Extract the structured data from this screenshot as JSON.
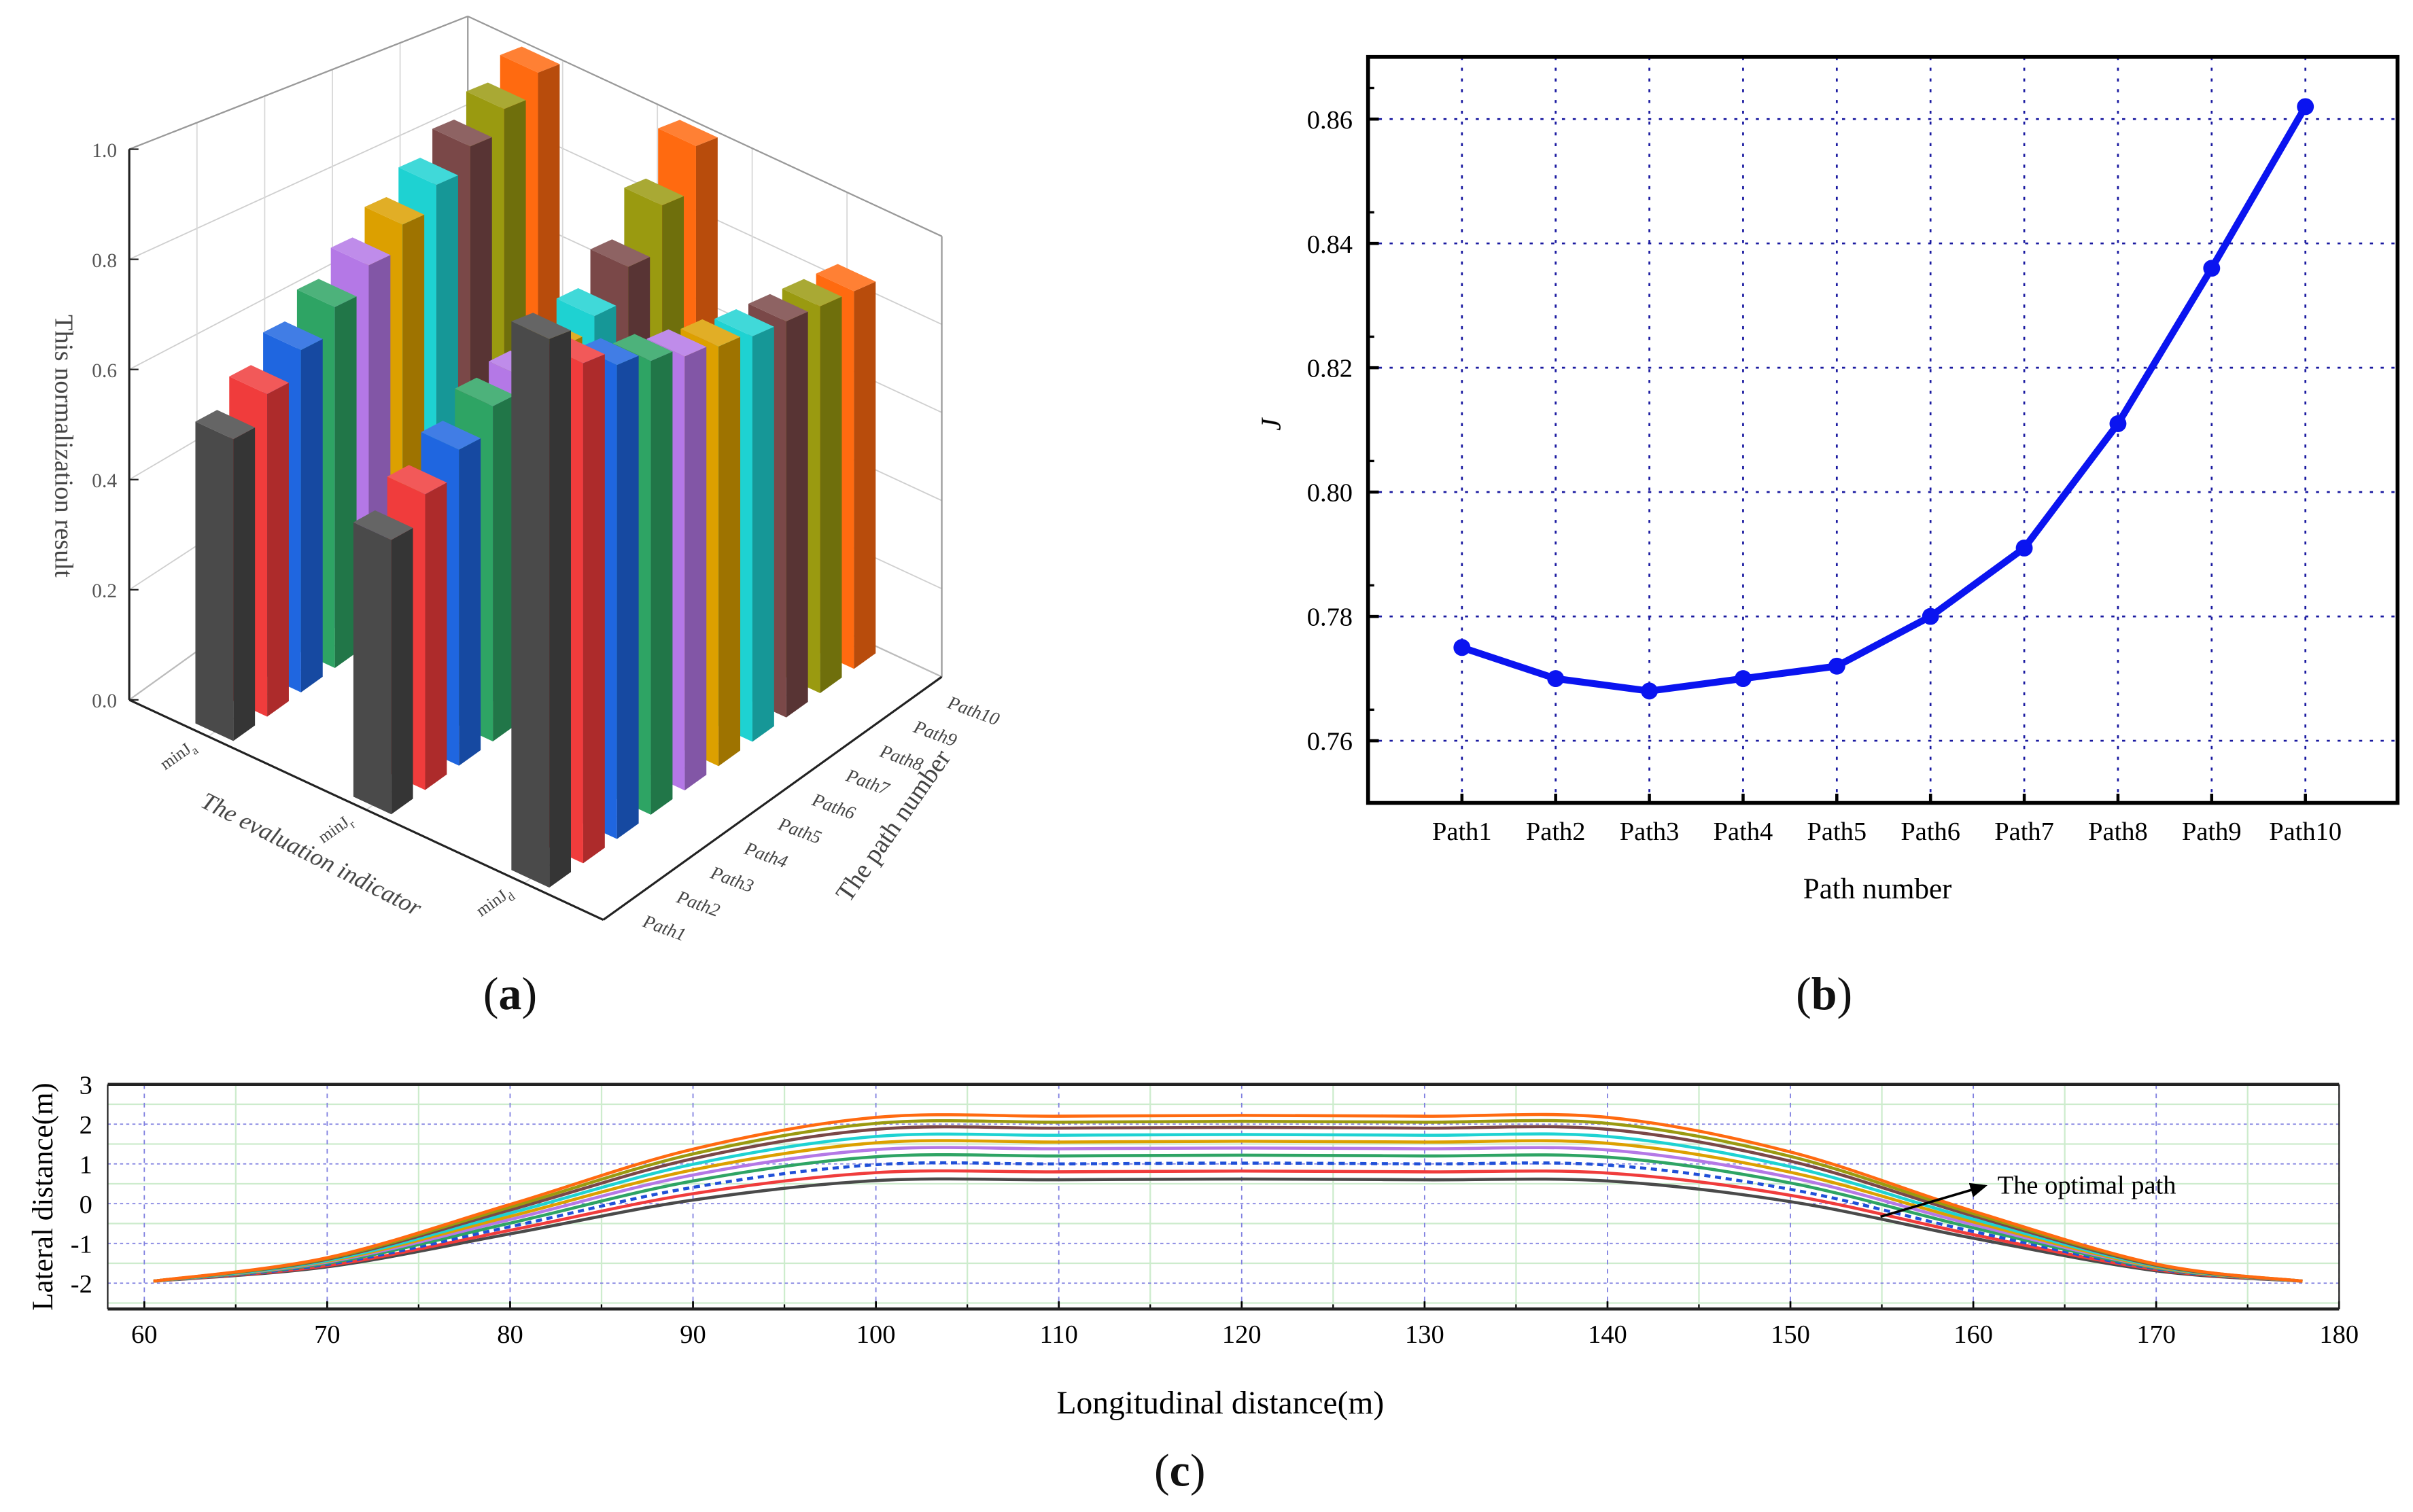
{
  "panels": {
    "a": "a",
    "b": "b",
    "c": "c"
  },
  "palette": [
    "#4a4a4a",
    "#f03c3c",
    "#1f66e0",
    "#2ea464",
    "#b478e6",
    "#dca000",
    "#1ed2d2",
    "#7a4848",
    "#9a9a10",
    "#ff6a10"
  ],
  "chart_data": [
    {
      "type": "bar3d",
      "ylabel": "This normalization result",
      "xlabel": "The evaluation indicator",
      "zlabel": "The path number",
      "indicators": [
        "minJa",
        "minJr",
        "minJd"
      ],
      "indicator_labels": [
        {
          "main": "minJ",
          "sub": "a"
        },
        {
          "main": "minJ",
          "sub": "r"
        },
        {
          "main": "minJ",
          "sub": "d"
        }
      ],
      "paths": [
        "Path1",
        "Path2",
        "Path3",
        "Path4",
        "Path5",
        "Path6",
        "Path7",
        "Path8",
        "Path9",
        "Path10"
      ],
      "yticks": [
        "0.0",
        "0.2",
        "0.4",
        "0.6",
        "0.8",
        "1.0"
      ],
      "ylim": [
        0,
        1
      ],
      "series": [
        {
          "indicator": "minJa",
          "values": [
            0.55,
            0.6,
            0.65,
            0.7,
            0.75,
            0.8,
            0.85,
            0.9,
            0.95,
            1.0
          ]
        },
        {
          "indicator": "minJr",
          "values": [
            0.5,
            0.55,
            0.6,
            0.65,
            0.67,
            0.7,
            0.73,
            0.8,
            0.9,
            1.0
          ]
        },
        {
          "indicator": "minJd",
          "values": [
            1.0,
            0.93,
            0.9,
            0.88,
            0.86,
            0.85,
            0.84,
            0.84,
            0.84,
            0.84
          ]
        }
      ]
    },
    {
      "type": "line",
      "xlabel": "Path number",
      "ylabel": "J",
      "categories": [
        "Path1",
        "Path2",
        "Path3",
        "Path4",
        "Path5",
        "Path6",
        "Path7",
        "Path8",
        "Path9",
        "Path10"
      ],
      "values": [
        0.775,
        0.77,
        0.768,
        0.77,
        0.772,
        0.78,
        0.791,
        0.811,
        0.836,
        0.862
      ],
      "yticks": [
        "0.76",
        "0.78",
        "0.80",
        "0.82",
        "0.84",
        "0.86"
      ],
      "ylim": [
        0.75,
        0.87
      ],
      "grid": true,
      "color": "#0a14f0"
    },
    {
      "type": "line",
      "xlabel": "Longitudinal distance(m)",
      "ylabel": "Lateral distance(m)",
      "xticks": [
        "60",
        "70",
        "80",
        "90",
        "100",
        "110",
        "120",
        "130",
        "140",
        "150",
        "160",
        "170",
        "180"
      ],
      "yticks": [
        "-2",
        "-1",
        "0",
        "1",
        "2",
        "3"
      ],
      "xlim": [
        58,
        180
      ],
      "ylim": [
        -2.65,
        3
      ],
      "grid": true,
      "annotation": "The optimal path",
      "x": [
        60.5,
        70,
        80,
        90,
        100,
        110,
        120,
        130,
        140,
        150,
        160,
        170,
        178
      ],
      "series": [
        {
          "values": [
            -1.95,
            -1.59,
            -0.76,
            0.09,
            0.58,
            0.6,
            0.62,
            0.6,
            0.57,
            0.05,
            -0.87,
            -1.69,
            -1.95
          ]
        },
        {
          "values": [
            -1.95,
            -1.56,
            -0.67,
            0.25,
            0.78,
            0.8,
            0.82,
            0.8,
            0.77,
            0.21,
            -0.78,
            -1.66,
            -1.95
          ]
        },
        {
          "values": [
            -1.95,
            -1.53,
            -0.58,
            0.41,
            0.98,
            1.0,
            1.02,
            1.0,
            0.97,
            0.36,
            -0.7,
            -1.64,
            -1.95
          ],
          "optimal": true
        },
        {
          "values": [
            -1.95,
            -1.5,
            -0.49,
            0.57,
            1.18,
            1.2,
            1.22,
            1.2,
            1.17,
            0.52,
            -0.61,
            -1.62,
            -1.95
          ]
        },
        {
          "values": [
            -1.95,
            -1.47,
            -0.4,
            0.72,
            1.36,
            1.38,
            1.4,
            1.38,
            1.35,
            0.66,
            -0.53,
            -1.6,
            -1.95
          ]
        },
        {
          "values": [
            -1.95,
            -1.45,
            -0.32,
            0.85,
            1.53,
            1.55,
            1.57,
            1.55,
            1.52,
            0.79,
            -0.46,
            -1.59,
            -1.95
          ]
        },
        {
          "values": [
            -1.95,
            -1.43,
            -0.24,
            0.99,
            1.69,
            1.72,
            1.74,
            1.72,
            1.69,
            0.93,
            -0.39,
            -1.57,
            -1.95
          ]
        },
        {
          "values": [
            -1.95,
            -1.4,
            -0.16,
            1.13,
            1.87,
            1.9,
            1.92,
            1.9,
            1.87,
            1.07,
            -0.31,
            -1.55,
            -1.95
          ]
        },
        {
          "values": [
            -1.95,
            -1.38,
            -0.09,
            1.25,
            2.02,
            2.05,
            2.07,
            2.05,
            2.02,
            1.19,
            -0.25,
            -1.53,
            -1.95
          ]
        },
        {
          "values": [
            -1.95,
            -1.36,
            -0.02,
            1.37,
            2.17,
            2.2,
            2.22,
            2.2,
            2.17,
            1.3,
            -0.19,
            -1.52,
            -1.95
          ]
        }
      ]
    }
  ]
}
